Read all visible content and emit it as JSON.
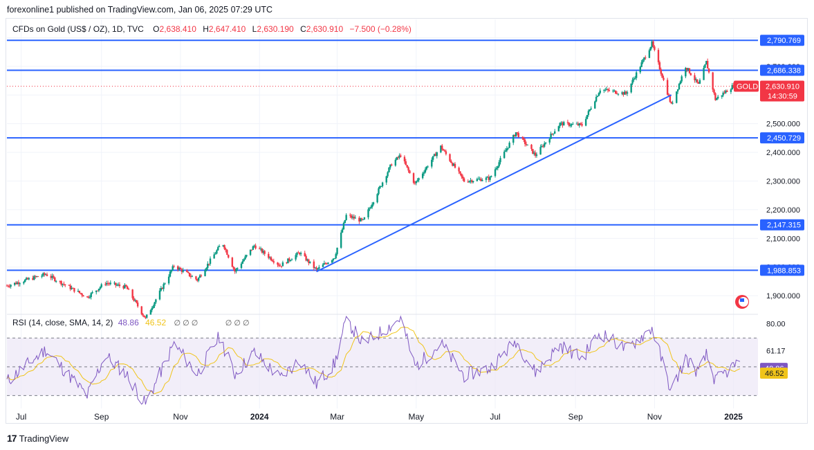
{
  "header": {
    "published": "forexonline1 published on TradingView.com, Jan 06, 2025 07:29 UTC"
  },
  "legend": {
    "symbol": "CFDs on Gold (US$ / OZ), 1D, TVC",
    "open_label": "O",
    "open": "2,638.410",
    "high_label": "H",
    "high": "2,647.410",
    "low_label": "L",
    "low": "2,630.190",
    "close_label": "C",
    "close": "2,630.910",
    "change": "−7.500 (−0.28%)"
  },
  "rsi_legend": {
    "title": "RSI (14, close, SMA, 14, 2)",
    "rsi_value": "48.86",
    "sma_value": "46.52",
    "hidden_markers": "∅ ∅ ∅",
    "hidden_markers_2": "∅ ∅ ∅"
  },
  "price_tag": {
    "symbol": "GOLD",
    "price": "2,630.910",
    "countdown": "14:30:59"
  },
  "footer": {
    "brand": "TradingView"
  },
  "colors": {
    "up": "#089981",
    "down": "#f23645",
    "level_line": "#2962ff",
    "rsi_line": "#7e57c2",
    "rsi_sma": "#f0c419",
    "rsi_band": "#ede7f6"
  },
  "chart_data": {
    "type": "candlestick",
    "price_axis": {
      "ticks": [
        "1,900.000",
        "2,000.000",
        "2,100.000",
        "2,200.000",
        "2,300.000",
        "2,400.000",
        "2,500.000",
        "2,600.000",
        "2,700.000",
        "2,800.000"
      ],
      "tick_values": [
        1900,
        2000,
        2100,
        2200,
        2300,
        2400,
        2500,
        2600,
        2700,
        2800
      ],
      "range": [
        1840,
        2830
      ]
    },
    "time_axis": {
      "labels": [
        "Jul",
        "Sep",
        "Nov",
        "2024",
        "Mar",
        "May",
        "Jul",
        "Sep",
        "Nov",
        "2025"
      ],
      "dates": [
        "2023-07-01",
        "2023-09-01",
        "2023-11-01",
        "2024-01-01",
        "2024-03-01",
        "2024-05-01",
        "2024-07-01",
        "2024-09-01",
        "2024-11-01",
        "2025-01-01"
      ]
    },
    "horizontal_levels": [
      {
        "label": "2,790.769",
        "value": 2790.769
      },
      {
        "label": "2,686.338",
        "value": 2686.338
      },
      {
        "label": "2,450.729",
        "value": 2450.729
      },
      {
        "label": "2,147.315",
        "value": 2147.315
      },
      {
        "label": "1,988.853",
        "value": 1988.853
      }
    ],
    "trendline": {
      "from": {
        "date": "2024-02-14",
        "price": 1984
      },
      "to": {
        "date": "2024-11-14",
        "price": 2600
      }
    },
    "current_price": 2630.91,
    "price_path": [
      [
        "2023-06-20",
        1935
      ],
      [
        "2023-07-20",
        1975
      ],
      [
        "2023-08-21",
        1895
      ],
      [
        "2023-09-04",
        1945
      ],
      [
        "2023-09-20",
        1930
      ],
      [
        "2023-10-05",
        1820
      ],
      [
        "2023-10-27",
        2005
      ],
      [
        "2023-11-14",
        1955
      ],
      [
        "2023-12-01",
        2070
      ],
      [
        "2023-12-04",
        2080
      ],
      [
        "2023-12-13",
        1985
      ],
      [
        "2023-12-28",
        2075
      ],
      [
        "2024-01-17",
        2005
      ],
      [
        "2024-02-01",
        2050
      ],
      [
        "2024-02-14",
        1990
      ],
      [
        "2024-02-28",
        2035
      ],
      [
        "2024-03-08",
        2180
      ],
      [
        "2024-03-21",
        2160
      ],
      [
        "2024-04-12",
        2360
      ],
      [
        "2024-04-19",
        2390
      ],
      [
        "2024-04-30",
        2290
      ],
      [
        "2024-05-20",
        2420
      ],
      [
        "2024-06-07",
        2300
      ],
      [
        "2024-06-27",
        2310
      ],
      [
        "2024-07-17",
        2470
      ],
      [
        "2024-08-01",
        2390
      ],
      [
        "2024-08-20",
        2500
      ],
      [
        "2024-09-06",
        2495
      ],
      [
        "2024-09-20",
        2620
      ],
      [
        "2024-10-10",
        2605
      ],
      [
        "2024-10-30",
        2780
      ],
      [
        "2024-11-14",
        2565
      ],
      [
        "2024-11-25",
        2700
      ],
      [
        "2024-12-05",
        2635
      ],
      [
        "2024-12-11",
        2715
      ],
      [
        "2024-12-18",
        2585
      ],
      [
        "2025-01-03",
        2640
      ],
      [
        "2025-01-06",
        2630.91
      ]
    ],
    "rsi": {
      "axis_ticks": [
        "80.00",
        "61.17",
        "43.86"
      ],
      "tick_values": [
        80,
        61.17,
        43.86
      ],
      "band": [
        30,
        70
      ],
      "range": [
        22,
        86
      ],
      "last_rsi": 48.86,
      "last_sma": 46.52,
      "path": [
        [
          "2023-06-20",
          40
        ],
        [
          "2023-07-20",
          62
        ],
        [
          "2023-08-21",
          30
        ],
        [
          "2023-09-04",
          58
        ],
        [
          "2023-09-20",
          45
        ],
        [
          "2023-10-05",
          24
        ],
        [
          "2023-10-27",
          66
        ],
        [
          "2023-11-14",
          45
        ],
        [
          "2023-12-01",
          71
        ],
        [
          "2023-12-13",
          45
        ],
        [
          "2023-12-28",
          60
        ],
        [
          "2024-01-17",
          42
        ],
        [
          "2024-02-01",
          55
        ],
        [
          "2024-02-14",
          38
        ],
        [
          "2024-02-28",
          52
        ],
        [
          "2024-03-08",
          83
        ],
        [
          "2024-03-21",
          66
        ],
        [
          "2024-04-12",
          79
        ],
        [
          "2024-04-19",
          84
        ],
        [
          "2024-04-30",
          50
        ],
        [
          "2024-05-20",
          66
        ],
        [
          "2024-06-07",
          44
        ],
        [
          "2024-06-27",
          49
        ],
        [
          "2024-07-17",
          68
        ],
        [
          "2024-08-01",
          46
        ],
        [
          "2024-08-20",
          65
        ],
        [
          "2024-09-06",
          56
        ],
        [
          "2024-09-20",
          74
        ],
        [
          "2024-10-10",
          62
        ],
        [
          "2024-10-30",
          77
        ],
        [
          "2024-11-14",
          33
        ],
        [
          "2024-11-25",
          56
        ],
        [
          "2024-12-05",
          46
        ],
        [
          "2024-12-11",
          58
        ],
        [
          "2024-12-18",
          40
        ],
        [
          "2025-01-03",
          52
        ],
        [
          "2025-01-06",
          48.86
        ]
      ]
    }
  }
}
